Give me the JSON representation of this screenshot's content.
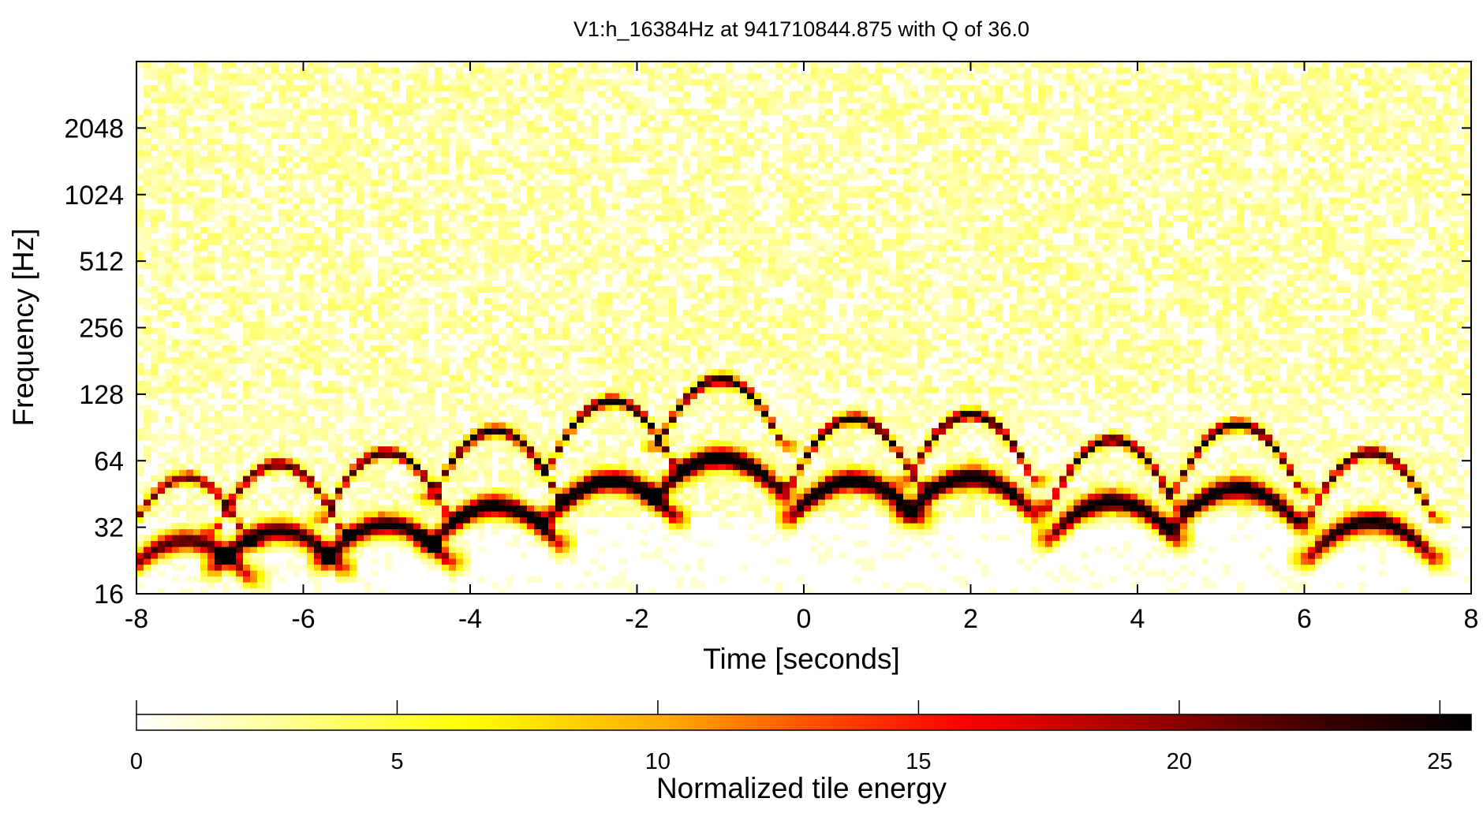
{
  "chart_data": {
    "type": "heatmap",
    "title": "V1:h_16384Hz at 941710844.875 with Q of 36.0",
    "xlabel": "Time [seconds]",
    "ylabel": "Frequency [Hz]",
    "xlim": [
      -8,
      8
    ],
    "ylim": [
      16,
      4096
    ],
    "yscale": "log2",
    "x_ticks": [
      -8,
      -6,
      -4,
      -2,
      0,
      2,
      4,
      6,
      8
    ],
    "x_tick_labels": [
      "-8",
      "-6",
      "-4",
      "-2",
      "0",
      "2",
      "4",
      "6",
      "8"
    ],
    "y_ticks": [
      16,
      32,
      64,
      128,
      256,
      512,
      1024,
      2048
    ],
    "y_tick_labels": [
      "16",
      "32",
      "64",
      "128",
      "256",
      "512",
      "1024",
      "2048"
    ],
    "grid": false,
    "colorbar": {
      "label": "Normalized tile energy",
      "range": [
        0,
        25.6
      ],
      "ticks": [
        0,
        5,
        10,
        15,
        20,
        25
      ],
      "tick_labels": [
        "0",
        "5",
        "10",
        "15",
        "20",
        "25"
      ],
      "colormap": [
        "#ffffff",
        "#ffff70",
        "#ffff00",
        "#ffa800",
        "#ff5500",
        "#ff0000",
        "#a00000",
        "#500000",
        "#000000"
      ]
    },
    "arches": [
      {
        "center_time": -7.4,
        "peak_freq_upper": 54,
        "peak_freq_lower": 28,
        "peak_energy": 21
      },
      {
        "center_time": -6.3,
        "peak_freq_upper": 62,
        "peak_freq_lower": 31,
        "peak_energy": 23
      },
      {
        "center_time": -5.0,
        "peak_freq_upper": 70,
        "peak_freq_lower": 33,
        "peak_energy": 24
      },
      {
        "center_time": -3.7,
        "peak_freq_upper": 88,
        "peak_freq_lower": 40,
        "peak_energy": 25
      },
      {
        "center_time": -2.3,
        "peak_freq_upper": 120,
        "peak_freq_lower": 52,
        "peak_energy": 25.6
      },
      {
        "center_time": -1.0,
        "peak_freq_upper": 150,
        "peak_freq_lower": 66,
        "peak_energy": 25.6
      },
      {
        "center_time": 0.6,
        "peak_freq_upper": 100,
        "peak_freq_lower": 52,
        "peak_energy": 25.6
      },
      {
        "center_time": 2.0,
        "peak_freq_upper": 104,
        "peak_freq_lower": 54,
        "peak_energy": 25.6
      },
      {
        "center_time": 3.7,
        "peak_freq_upper": 80,
        "peak_freq_lower": 42,
        "peak_energy": 25
      },
      {
        "center_time": 5.2,
        "peak_freq_upper": 94,
        "peak_freq_lower": 48,
        "peak_energy": 25.6
      },
      {
        "center_time": 6.8,
        "peak_freq_upper": 70,
        "peak_freq_lower": 34,
        "peak_energy": 24
      }
    ],
    "background_energy": [
      0,
      4
    ]
  }
}
